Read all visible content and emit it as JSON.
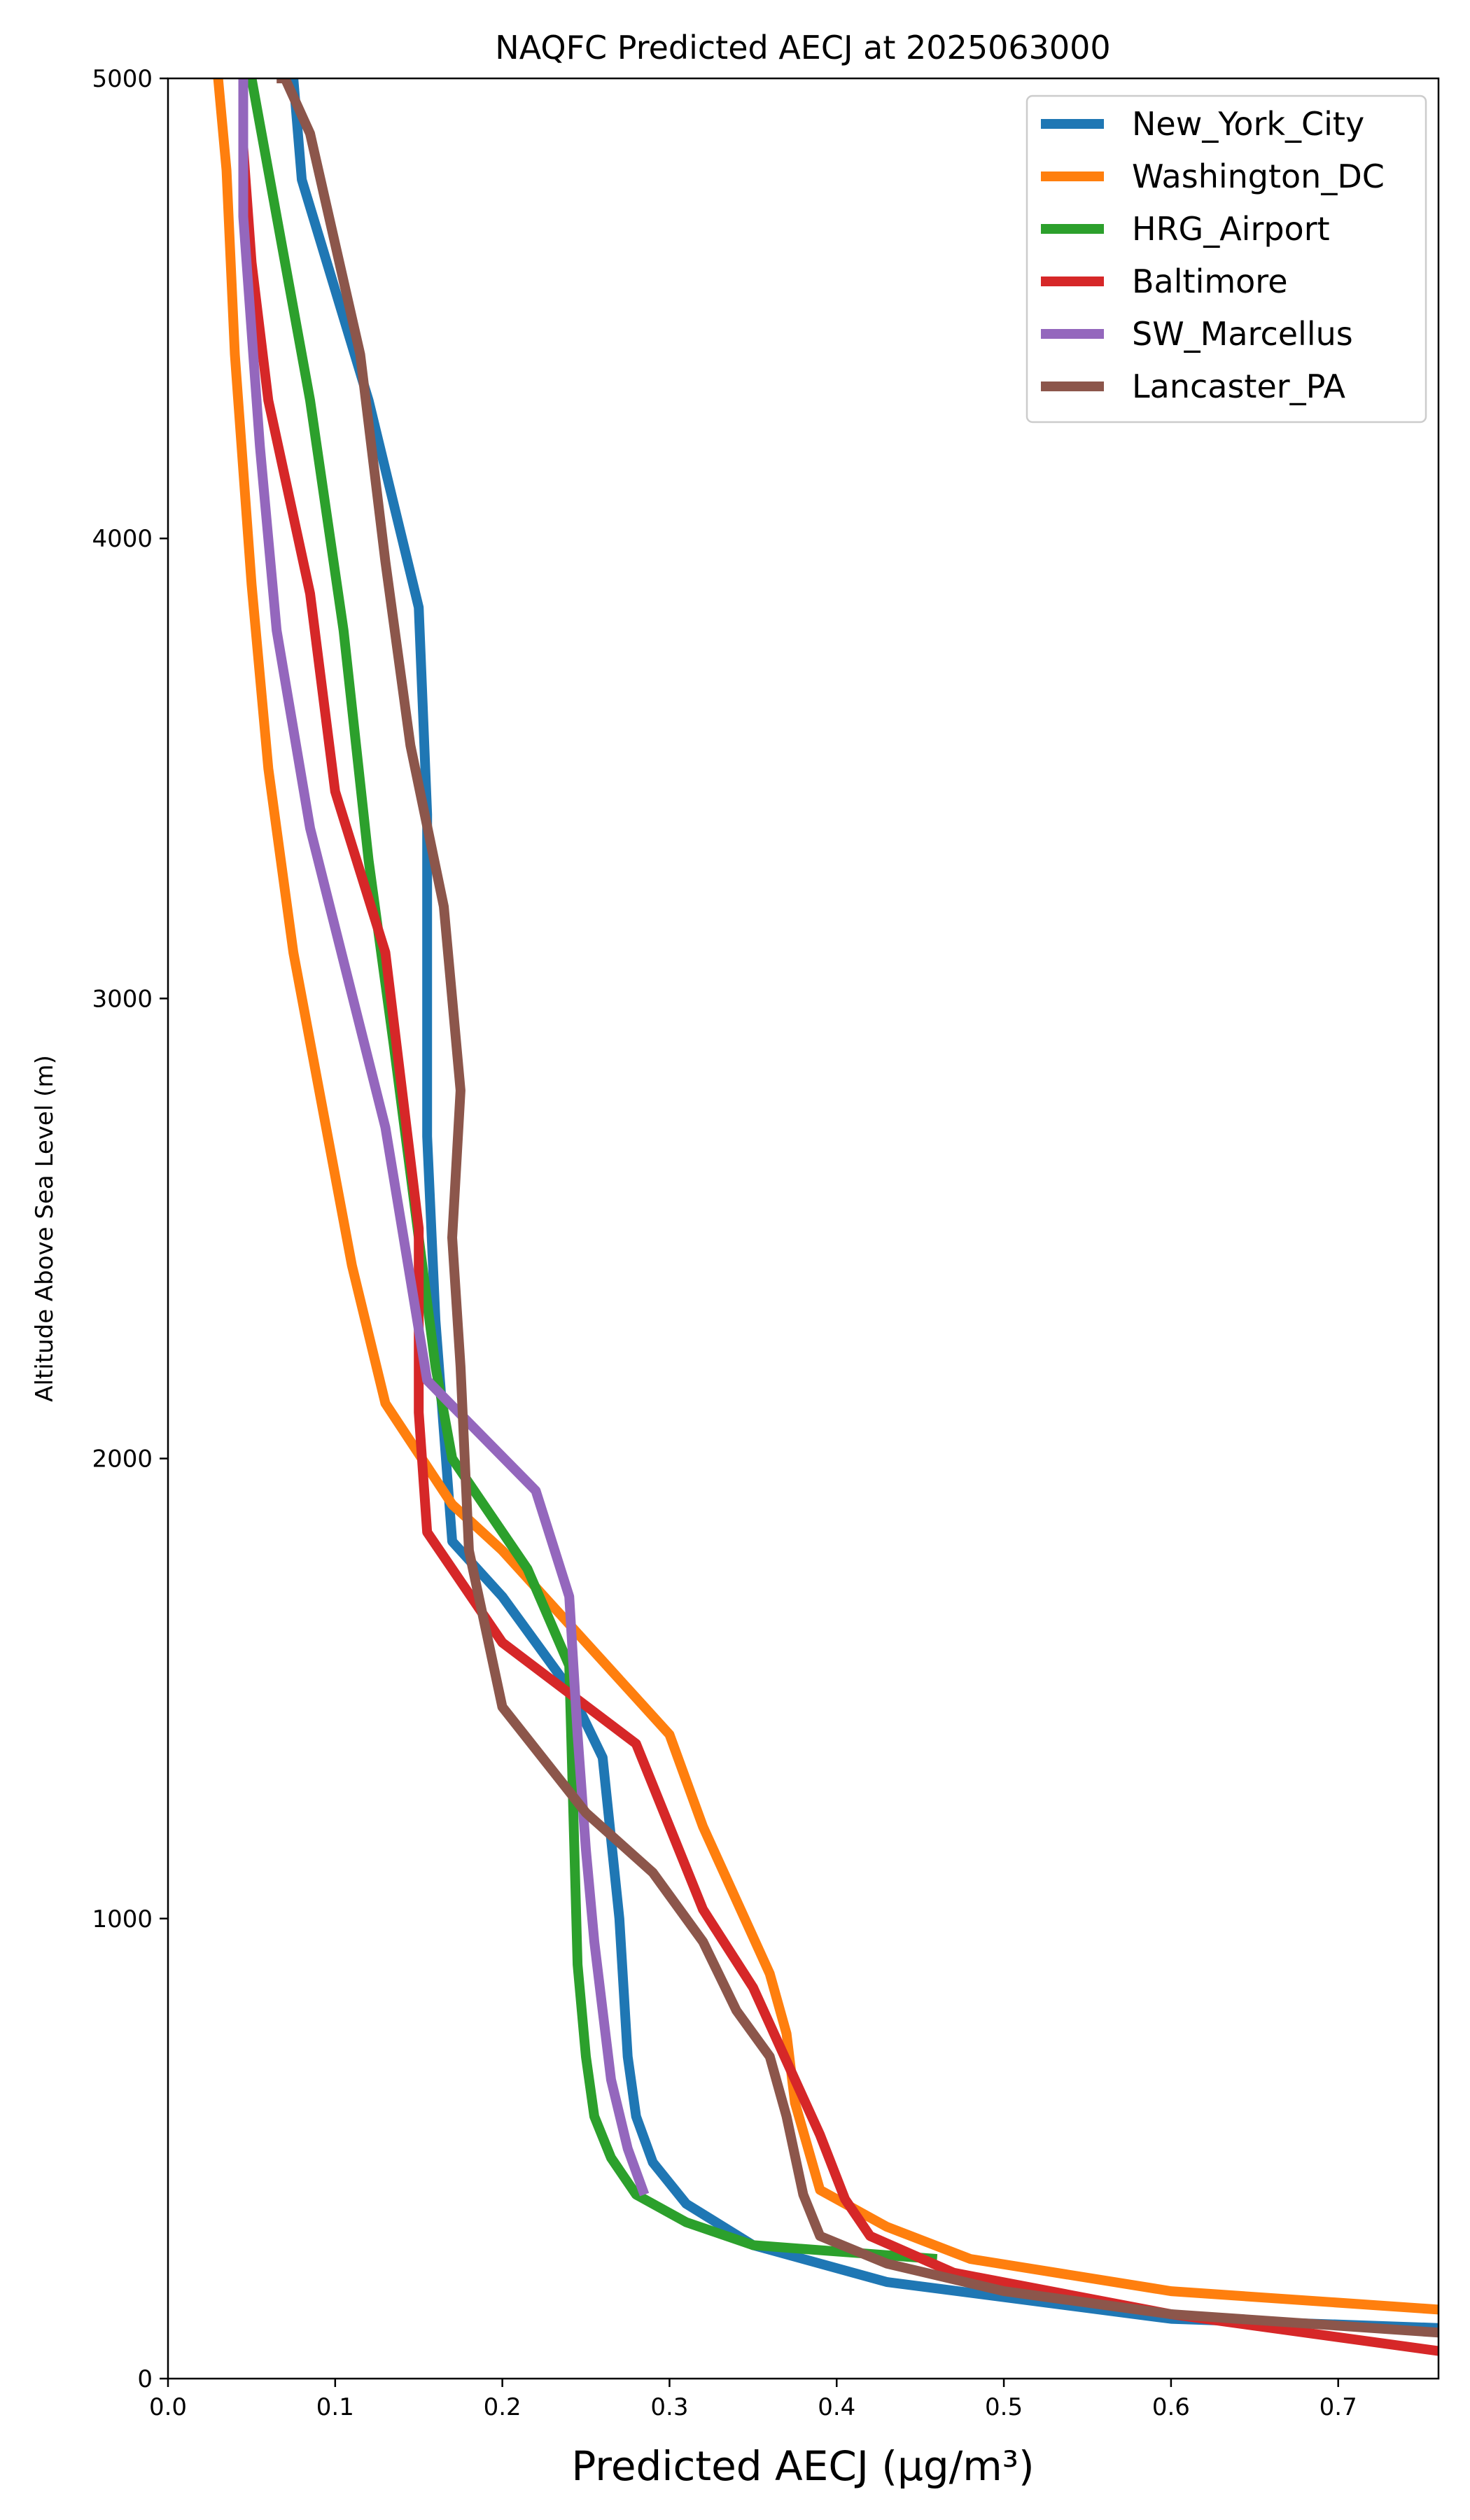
{
  "chart_data": {
    "type": "line",
    "title": "NAQFC Predicted AECJ at 2025063000",
    "xlabel": "Predicted AECJ (μg/m³)",
    "ylabel": "Altitude Above Sea Level (m)",
    "xlim": [
      0.0,
      0.76
    ],
    "ylim": [
      0,
      5000
    ],
    "xticks": [
      0.0,
      0.1,
      0.2,
      0.3,
      0.4,
      0.5,
      0.6,
      0.7
    ],
    "xtick_labels": [
      "0.0",
      "0.1",
      "0.2",
      "0.3",
      "0.4",
      "0.5",
      "0.6",
      "0.7"
    ],
    "yticks": [
      0,
      1000,
      2000,
      3000,
      4000,
      5000
    ],
    "ytick_labels": [
      "0",
      "1000",
      "2000",
      "3000",
      "4000",
      "5000"
    ],
    "grid": false,
    "legend_position": "top-right",
    "series": [
      {
        "name": "New_York_City",
        "color": "#1f77b4",
        "x": [
          0.76,
          0.6,
          0.43,
          0.35,
          0.31,
          0.29,
          0.28,
          0.275,
          0.27,
          0.26,
          0.24,
          0.2,
          0.17,
          0.16,
          0.155,
          0.155,
          0.15,
          0.12,
          0.08,
          0.075
        ],
        "y": [
          110,
          130,
          210,
          290,
          380,
          470,
          570,
          700,
          1000,
          1350,
          1500,
          1700,
          1820,
          2300,
          2700,
          3400,
          3850,
          4300,
          4780,
          5000
        ]
      },
      {
        "name": "Washington_DC",
        "color": "#ff7f0e",
        "x": [
          0.76,
          0.6,
          0.48,
          0.43,
          0.39,
          0.375,
          0.37,
          0.36,
          0.32,
          0.3,
          0.25,
          0.2,
          0.17,
          0.13,
          0.11,
          0.075,
          0.06,
          0.05,
          0.04,
          0.035,
          0.03
        ],
        "y": [
          150,
          190,
          260,
          330,
          410,
          600,
          750,
          880,
          1200,
          1400,
          1600,
          1800,
          1900,
          2120,
          2420,
          3100,
          3500,
          3900,
          4400,
          4800,
          5000
        ]
      },
      {
        "name": "HRG_Airport",
        "color": "#2ca02c",
        "x": [
          0.46,
          0.35,
          0.31,
          0.28,
          0.265,
          0.255,
          0.25,
          0.245,
          0.24,
          0.215,
          0.17,
          0.16,
          0.135,
          0.12,
          0.105,
          0.085,
          0.065,
          0.055,
          0.05
        ],
        "y": [
          260,
          290,
          340,
          400,
          480,
          570,
          700,
          900,
          1550,
          1760,
          2000,
          2200,
          2900,
          3300,
          3800,
          4300,
          4700,
          4900,
          5000
        ]
      },
      {
        "name": "Baltimore",
        "color": "#d62728",
        "x": [
          0.76,
          0.6,
          0.47,
          0.42,
          0.405,
          0.39,
          0.35,
          0.32,
          0.28,
          0.2,
          0.155,
          0.15,
          0.15,
          0.13,
          0.1,
          0.085,
          0.06,
          0.05,
          0.045,
          0.045
        ],
        "y": [
          60,
          140,
          230,
          310,
          390,
          530,
          850,
          1020,
          1380,
          1600,
          1840,
          2100,
          2500,
          3100,
          3450,
          3880,
          4300,
          4600,
          4850,
          5000
        ]
      },
      {
        "name": "SW_Marcellus",
        "color": "#9467bd",
        "x": [
          0.285,
          0.275,
          0.265,
          0.26,
          0.255,
          0.25,
          0.245,
          0.24,
          0.22,
          0.155,
          0.13,
          0.085,
          0.065,
          0.055,
          0.045,
          0.045
        ],
        "y": [
          400,
          500,
          650,
          800,
          950,
          1150,
          1400,
          1700,
          1930,
          2170,
          2720,
          3370,
          3800,
          4200,
          4700,
          5000
        ]
      },
      {
        "name": "Lancaster_PA",
        "color": "#8c564b",
        "x": [
          0.76,
          0.6,
          0.5,
          0.43,
          0.39,
          0.38,
          0.37,
          0.36,
          0.34,
          0.32,
          0.29,
          0.25,
          0.2,
          0.18,
          0.175,
          0.17,
          0.175,
          0.165,
          0.145,
          0.13,
          0.115,
          0.085,
          0.07,
          0.065,
          0.065
        ],
        "y": [
          100,
          140,
          190,
          250,
          310,
          400,
          570,
          700,
          800,
          950,
          1100,
          1230,
          1460,
          1800,
          2200,
          2480,
          2800,
          3200,
          3550,
          3950,
          4400,
          4880,
          5000,
          5000,
          5000
        ]
      }
    ]
  }
}
